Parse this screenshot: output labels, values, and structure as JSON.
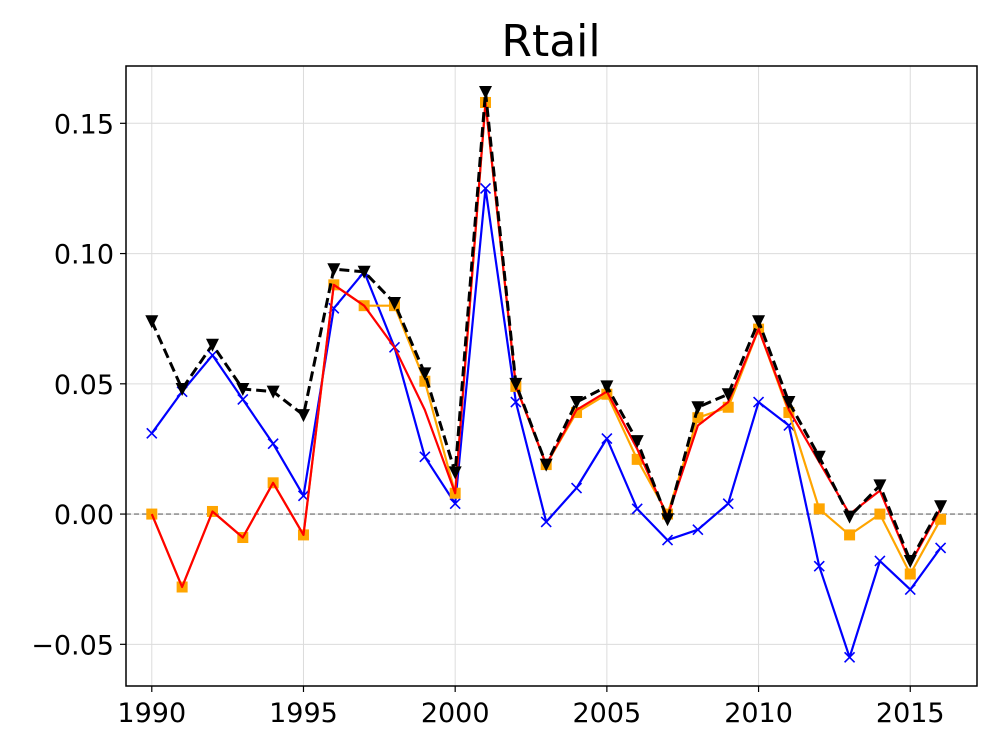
{
  "chart_data": {
    "type": "line",
    "title": "Rtail",
    "xlabel": "",
    "ylabel": "",
    "xlim": [
      1989.15,
      2017.2
    ],
    "ylim": [
      -0.066,
      0.172
    ],
    "x_ticks": [
      1990,
      1995,
      2000,
      2005,
      2010,
      2015
    ],
    "x_tick_labels": [
      "1990",
      "1995",
      "2000",
      "2005",
      "2010",
      "2015"
    ],
    "y_ticks": [
      -0.05,
      0.0,
      0.05,
      0.1,
      0.15
    ],
    "y_tick_labels": [
      "−0.05",
      "0.00",
      "0.05",
      "0.10",
      "0.15"
    ],
    "grid": true,
    "reference_line": {
      "y": 0,
      "color": "#808080",
      "style": "dashed"
    },
    "x": [
      1990,
      1991,
      1992,
      1993,
      1994,
      1995,
      1996,
      1997,
      1998,
      1999,
      2000,
      2001,
      2002,
      2003,
      2004,
      2005,
      2006,
      2007,
      2008,
      2009,
      2010,
      2011,
      2012,
      2013,
      2014,
      2015,
      2016
    ],
    "series": [
      {
        "color": "#0000ff",
        "marker": "x",
        "linestyle": "solid",
        "values": [
          0.031,
          0.047,
          0.061,
          0.044,
          0.027,
          0.007,
          0.079,
          0.093,
          0.064,
          0.022,
          0.004,
          0.125,
          0.043,
          -0.003,
          0.01,
          0.029,
          0.002,
          -0.01,
          -0.006,
          0.004,
          0.043,
          0.034,
          -0.02,
          -0.055,
          -0.018,
          -0.029,
          -0.013
        ]
      },
      {
        "color": "#ffa500",
        "marker": "s",
        "linestyle": "solid",
        "values": [
          0.0,
          -0.028,
          0.001,
          -0.009,
          0.012,
          -0.008,
          0.088,
          0.08,
          0.08,
          0.051,
          0.008,
          0.158,
          0.049,
          0.019,
          0.039,
          0.046,
          0.021,
          0.0,
          0.037,
          0.041,
          0.071,
          0.039,
          0.002,
          -0.008,
          0.0,
          -0.023,
          -0.002
        ]
      },
      {
        "color": "#ff0000",
        "marker": "none",
        "linestyle": "solid",
        "values": [
          0.0,
          -0.028,
          0.001,
          -0.009,
          0.012,
          -0.008,
          0.088,
          0.08,
          0.064,
          0.04,
          0.008,
          0.158,
          0.049,
          0.019,
          0.04,
          0.047,
          0.025,
          -0.001,
          0.034,
          0.043,
          0.071,
          0.04,
          0.02,
          0.0,
          0.009,
          -0.019,
          0.002
        ]
      },
      {
        "color": "#000000",
        "marker": "v",
        "linestyle": "dashed",
        "values": [
          0.074,
          0.048,
          0.065,
          0.048,
          0.047,
          0.038,
          0.094,
          0.093,
          0.081,
          0.054,
          0.016,
          0.162,
          0.05,
          0.019,
          0.043,
          0.049,
          0.028,
          -0.002,
          0.041,
          0.046,
          0.074,
          0.043,
          0.022,
          -0.001,
          0.011,
          -0.018,
          0.003
        ]
      }
    ]
  }
}
